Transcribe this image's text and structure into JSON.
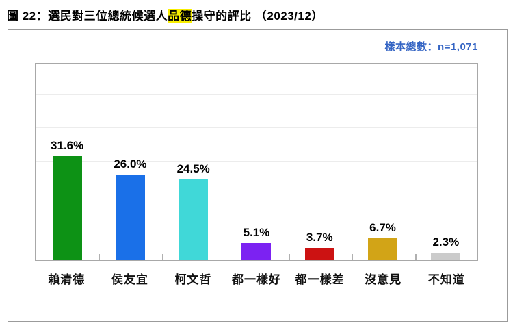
{
  "header": {
    "title_prefix": "圖 22：選民對三位總統候選人",
    "title_highlight": "品德",
    "title_suffix": "操守的評比 （2023/12）",
    "highlight_color": "#f8ee00"
  },
  "sample_note": {
    "text": "樣本總數：n=1,071",
    "color": "#3565c4"
  },
  "chart_data": {
    "type": "bar",
    "title": "選民對三位總統候選人品德操守的評比（2023/12）",
    "categories": [
      "賴清德",
      "侯友宜",
      "柯文哲",
      "都一樣好",
      "都一樣差",
      "沒意見",
      "不知道"
    ],
    "values": [
      31.6,
      26.0,
      24.5,
      5.1,
      3.7,
      6.7,
      2.3
    ],
    "value_labels": [
      "31.6%",
      "26.0%",
      "24.5%",
      "5.1%",
      "3.7%",
      "6.7%",
      "2.3%"
    ],
    "bar_colors": [
      "#0d9215",
      "#1a70e8",
      "#40d8d8",
      "#7c22f2",
      "#cc1212",
      "#d2a417",
      "#cbcbcb"
    ],
    "xlabel": "",
    "ylabel": "",
    "ylim": [
      0,
      60
    ],
    "gridlines_percent": [
      10,
      20,
      30,
      40,
      50
    ],
    "grid": "horizontal-only",
    "legend": "none",
    "plot_border_color": "#a8a8a8",
    "gridline_color": "#ececec"
  }
}
